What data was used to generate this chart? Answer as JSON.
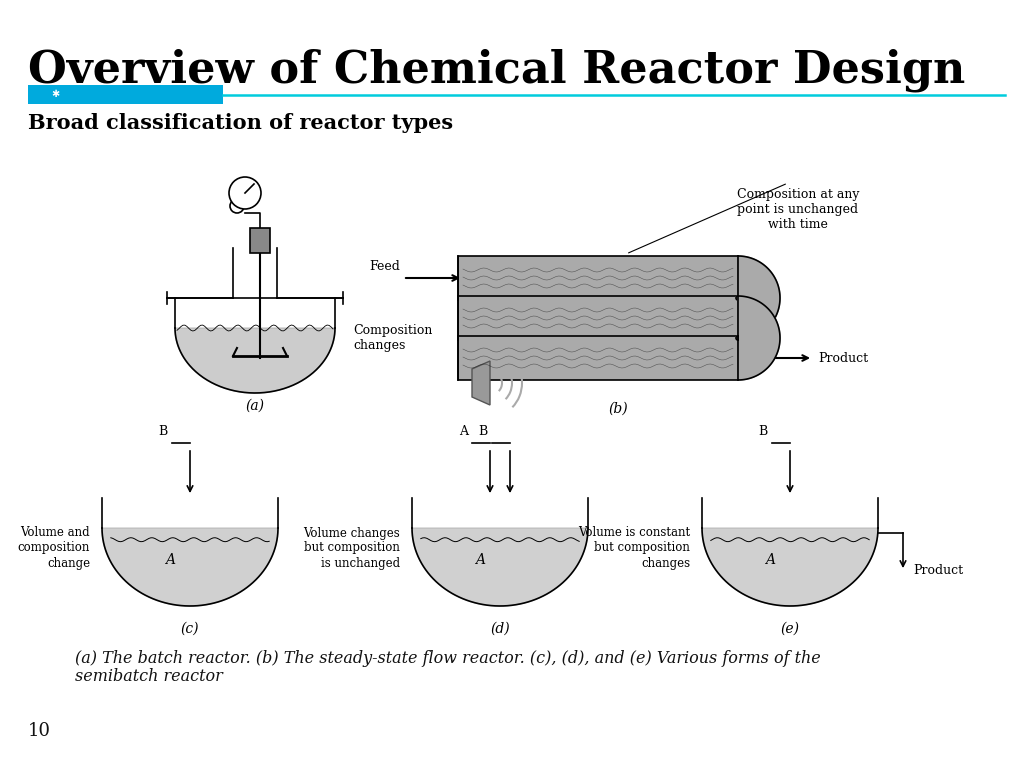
{
  "title": "Overview of Chemical Reactor Design",
  "subtitle": "Broad classification of reactor types",
  "caption_line1": "(a) The batch reactor. (b) The steady-state flow reactor. (c), (d), and (e) Various forms of the",
  "caption_line2": "semibatch reactor",
  "page_number": "10",
  "title_fontsize": 32,
  "subtitle_fontsize": 15,
  "caption_fontsize": 11.5,
  "page_fontsize": 13,
  "title_color": "#000000",
  "subtitle_color": "#000000",
  "bar_blue": "#00AADD",
  "bar_teal": "#00CCDD",
  "bg_color": "#FFFFFF",
  "diagram_gray": "#AAAAAA",
  "diagram_light_gray": "#CCCCCC"
}
